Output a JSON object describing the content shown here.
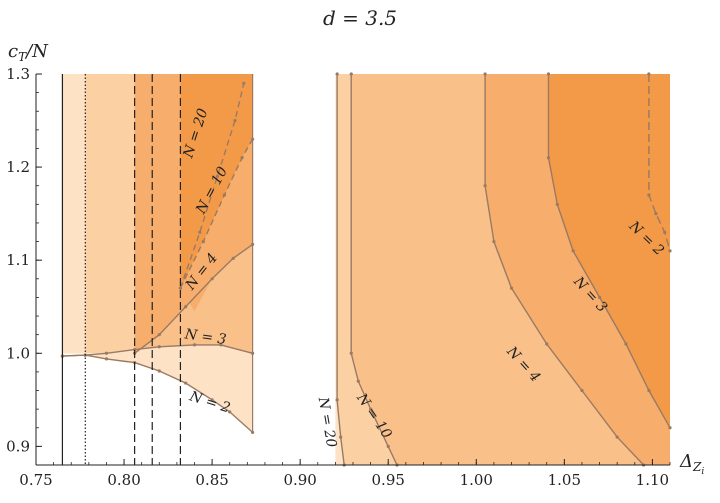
{
  "chart_data": {
    "type": "area",
    "title": "d = 3.5",
    "xlabel": "ΔZi",
    "ylabel": "cT/N",
    "xlim": [
      0.75,
      1.11
    ],
    "ylim": [
      0.88,
      1.3
    ],
    "xticks": [
      "0.75",
      "0.80",
      "0.85",
      "0.90",
      "0.95",
      "1.00",
      "1.05",
      "1.10"
    ],
    "yticks": [
      "0.9",
      "1.0",
      "1.1",
      "1.2",
      "1.3"
    ],
    "left_panel": {
      "x_range": [
        0.765,
        0.873
      ],
      "vertical_lines": [
        {
          "x": 0.765,
          "style": "solid"
        },
        {
          "x": 0.778,
          "style": "dotted"
        },
        {
          "x": 0.806,
          "style": "dashed"
        },
        {
          "x": 0.816,
          "style": "dashed"
        },
        {
          "x": 0.832,
          "style": "dashed"
        }
      ],
      "regions": [
        {
          "name": "N = 2",
          "label": "N = 2",
          "boundary": [
            [
              0.765,
              0.997
            ],
            [
              0.778,
              0.998
            ],
            [
              0.79,
              0.994
            ],
            [
              0.806,
              0.99
            ],
            [
              0.82,
              0.981
            ],
            [
              0.835,
              0.968
            ],
            [
              0.85,
              0.95
            ],
            [
              0.86,
              0.937
            ],
            [
              0.873,
              0.915
            ]
          ]
        },
        {
          "name": "N = 3",
          "label": "N = 3",
          "boundary": [
            [
              0.765,
              0.997
            ],
            [
              0.778,
              0.998
            ],
            [
              0.79,
              1.0
            ],
            [
              0.806,
              1.004
            ],
            [
              0.82,
              1.007
            ],
            [
              0.84,
              1.009
            ],
            [
              0.855,
              1.009
            ],
            [
              0.873,
              1.0
            ]
          ]
        },
        {
          "name": "N = 4",
          "label": "N = 4",
          "boundary": [
            [
              0.806,
              1.0
            ],
            [
              0.82,
              1.02
            ],
            [
              0.835,
              1.05
            ],
            [
              0.85,
              1.08
            ],
            [
              0.862,
              1.102
            ],
            [
              0.873,
              1.117
            ]
          ]
        },
        {
          "name": "N = 10",
          "label": "N = 10",
          "boundary": [
            [
              0.832,
              1.07
            ],
            [
              0.845,
              1.12
            ],
            [
              0.857,
              1.17
            ],
            [
              0.867,
              1.21
            ],
            [
              0.873,
              1.23
            ]
          ]
        },
        {
          "name": "N = 20",
          "label": "N = 20",
          "boundary": [
            [
              0.832,
              1.07
            ],
            [
              0.843,
              1.13
            ],
            [
              0.853,
              1.19
            ],
            [
              0.863,
              1.25
            ],
            [
              0.868,
              1.29
            ]
          ]
        }
      ]
    },
    "right_panel": {
      "x_range": [
        0.92,
        1.11
      ],
      "regions": [
        {
          "name": "N = 20",
          "label": "N = 20",
          "boundary": [
            [
              0.921,
              1.3
            ],
            [
              0.921,
              0.95
            ],
            [
              0.923,
              0.91
            ],
            [
              0.925,
              0.88
            ]
          ]
        },
        {
          "name": "N = 10",
          "label": "N = 10",
          "boundary": [
            [
              0.929,
              1.3
            ],
            [
              0.929,
              1.0
            ],
            [
              0.933,
              0.97
            ],
            [
              0.94,
              0.94
            ],
            [
              0.95,
              0.9
            ],
            [
              0.955,
              0.88
            ]
          ]
        },
        {
          "name": "N = 4",
          "label": "N = 4",
          "boundary": [
            [
              1.005,
              1.3
            ],
            [
              1.005,
              1.18
            ],
            [
              1.01,
              1.12
            ],
            [
              1.02,
              1.07
            ],
            [
              1.04,
              1.01
            ],
            [
              1.06,
              0.96
            ],
            [
              1.08,
              0.91
            ],
            [
              1.095,
              0.88
            ]
          ]
        },
        {
          "name": "N = 3",
          "label": "N = 3",
          "boundary": [
            [
              1.041,
              1.3
            ],
            [
              1.041,
              1.21
            ],
            [
              1.046,
              1.16
            ],
            [
              1.055,
              1.11
            ],
            [
              1.07,
              1.06
            ],
            [
              1.085,
              1.01
            ],
            [
              1.098,
              0.96
            ],
            [
              1.11,
              0.92
            ]
          ]
        },
        {
          "name": "N = 2",
          "label": "N = 2",
          "boundary": [
            [
              1.098,
              1.3
            ],
            [
              1.098,
              1.17
            ],
            [
              1.102,
              1.15
            ],
            [
              1.107,
              1.13
            ],
            [
              1.11,
              1.11
            ]
          ]
        }
      ]
    },
    "colors": {
      "light": "#fde2c5",
      "mid1": "#fbd1a4",
      "mid2": "#f9c08a",
      "mid3": "#f7ae6c",
      "dark": "#f39a48",
      "curve": "#9a7a62",
      "axis": "#222222"
    }
  }
}
